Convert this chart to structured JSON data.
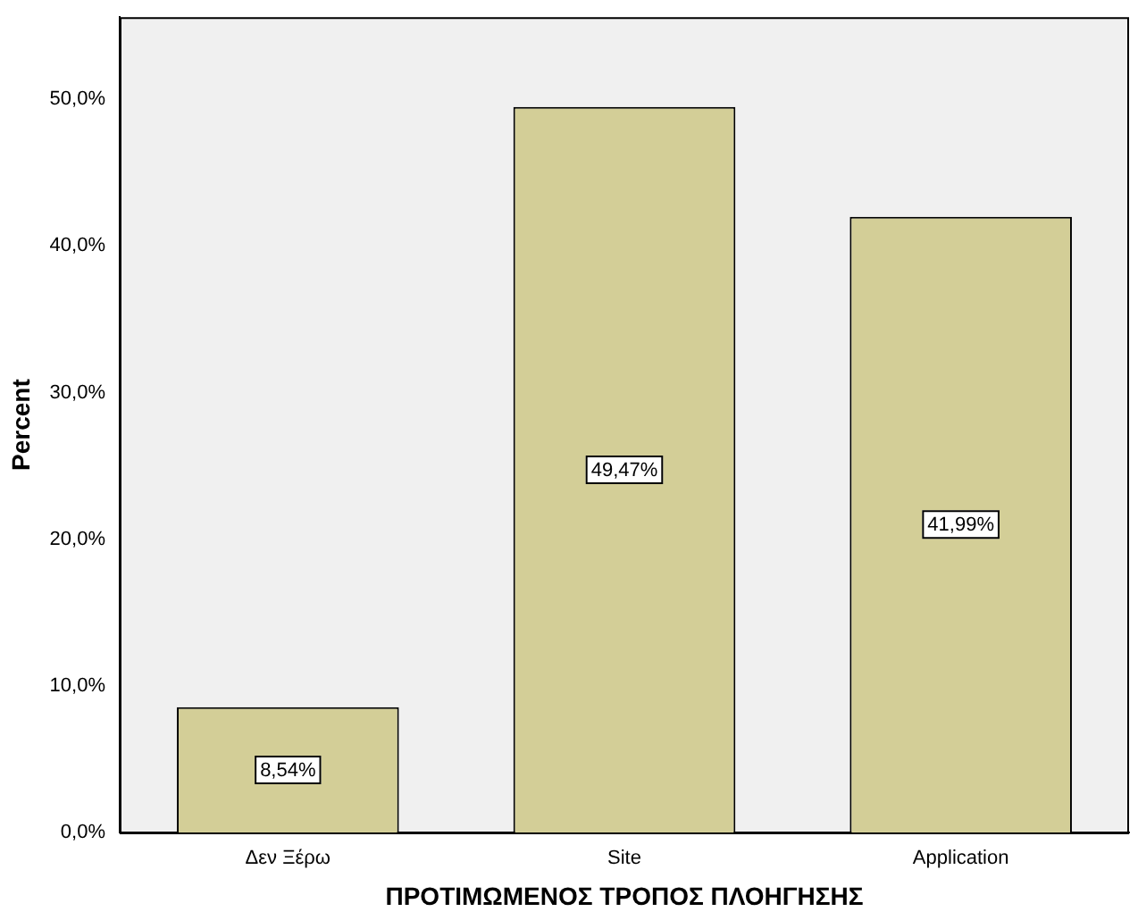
{
  "chart_data": {
    "type": "bar",
    "xlabel": "ΠΡΟΤΙΜΩΜΕΝΟΣ ΤΡΟΠΟΣ ΠΛΟΗΓΗΣΗΣ",
    "ylabel": "Percent",
    "categories": [
      "Δεν Ξέρω",
      "Site",
      "Application"
    ],
    "values": [
      8.54,
      49.47,
      41.99
    ],
    "color": "#d3ce97",
    "value_labels": [
      "8,54%",
      "49,47%",
      "41,99%"
    ],
    "ylim": [
      0,
      55.6
    ],
    "yticks": [
      {
        "value": 0,
        "label": "0,0%"
      },
      {
        "value": 10,
        "label": "10,0%"
      },
      {
        "value": 20,
        "label": "20,0%"
      },
      {
        "value": 30,
        "label": "30,0%"
      },
      {
        "value": 40,
        "label": "40,0%"
      },
      {
        "value": 50,
        "label": "50,0%"
      }
    ],
    "grid": false,
    "legend": false
  }
}
